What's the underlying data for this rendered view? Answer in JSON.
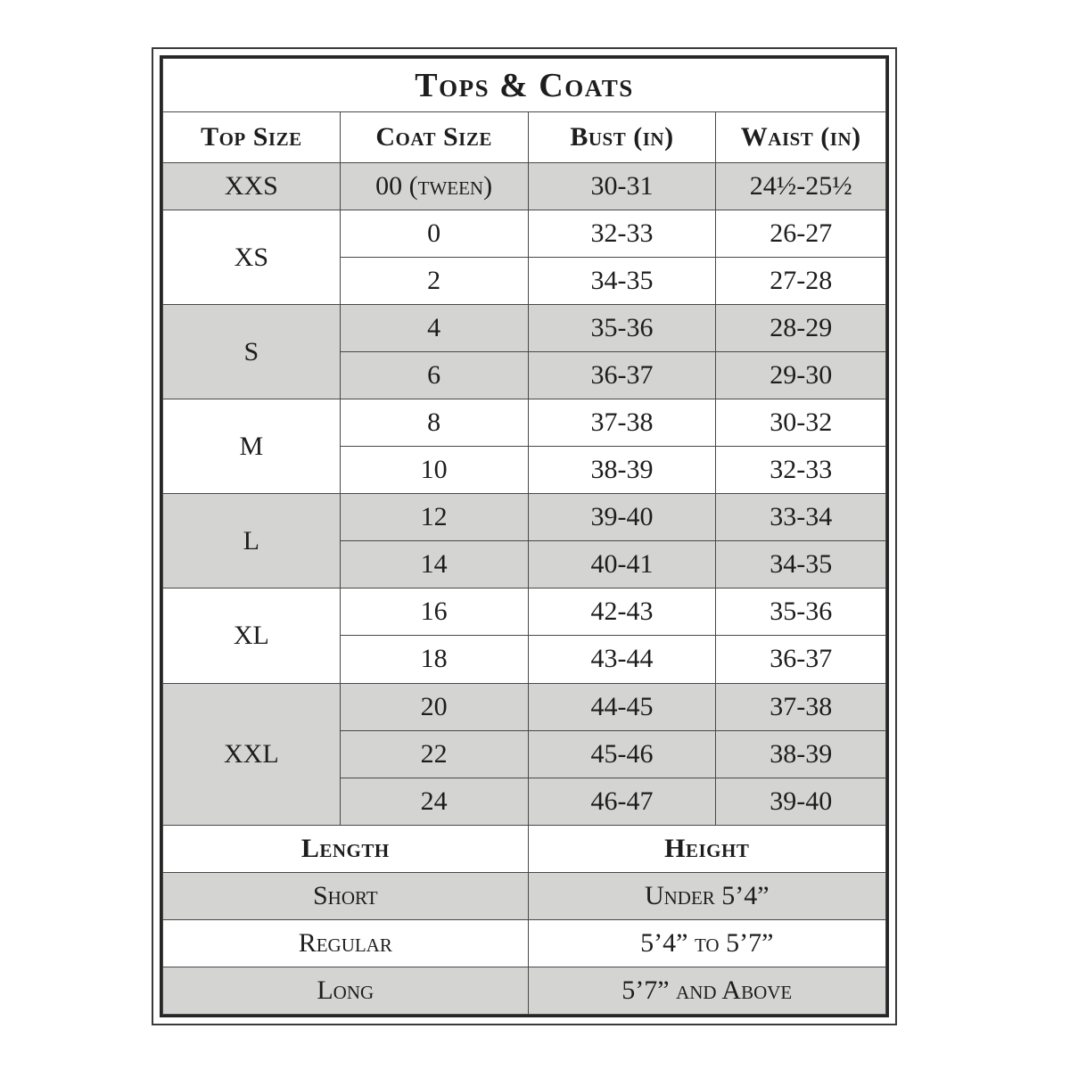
{
  "title": "Tops & Coats",
  "colors": {
    "shaded_row": "#d4d4d2",
    "text": "#1d1d1d",
    "grid_line": "#484848",
    "frame": "#262626",
    "background": "#ffffff"
  },
  "size_table": {
    "headers": [
      "Top Size",
      "Coat Size",
      "Bust (in)",
      "Waist (in)"
    ],
    "groups": [
      {
        "top_size": "XXS",
        "shaded": true,
        "rows": [
          {
            "coat_size": "00 (tween)",
            "bust": "30-31",
            "waist": "24½-25½"
          }
        ]
      },
      {
        "top_size": "XS",
        "shaded": false,
        "rows": [
          {
            "coat_size": "0",
            "bust": "32-33",
            "waist": "26-27"
          },
          {
            "coat_size": "2",
            "bust": "34-35",
            "waist": "27-28"
          }
        ]
      },
      {
        "top_size": "S",
        "shaded": true,
        "rows": [
          {
            "coat_size": "4",
            "bust": "35-36",
            "waist": "28-29"
          },
          {
            "coat_size": "6",
            "bust": "36-37",
            "waist": "29-30"
          }
        ]
      },
      {
        "top_size": "M",
        "shaded": false,
        "rows": [
          {
            "coat_size": "8",
            "bust": "37-38",
            "waist": "30-32"
          },
          {
            "coat_size": "10",
            "bust": "38-39",
            "waist": "32-33"
          }
        ]
      },
      {
        "top_size": "L",
        "shaded": true,
        "rows": [
          {
            "coat_size": "12",
            "bust": "39-40",
            "waist": "33-34"
          },
          {
            "coat_size": "14",
            "bust": "40-41",
            "waist": "34-35"
          }
        ]
      },
      {
        "top_size": "XL",
        "shaded": false,
        "rows": [
          {
            "coat_size": "16",
            "bust": "42-43",
            "waist": "35-36"
          },
          {
            "coat_size": "18",
            "bust": "43-44",
            "waist": "36-37"
          }
        ]
      },
      {
        "top_size": "XXL",
        "shaded": true,
        "rows": [
          {
            "coat_size": "20",
            "bust": "44-45",
            "waist": "37-38"
          },
          {
            "coat_size": "22",
            "bust": "45-46",
            "waist": "38-39"
          },
          {
            "coat_size": "24",
            "bust": "46-47",
            "waist": "39-40"
          }
        ]
      }
    ]
  },
  "length_table": {
    "headers": [
      "Length",
      "Height"
    ],
    "rows": [
      {
        "length": "Short",
        "height": "Under 5’4”",
        "shaded": true
      },
      {
        "length": "Regular",
        "height": "5’4” to 5’7”",
        "shaded": false
      },
      {
        "length": "Long",
        "height": "5’7” and Above",
        "shaded": true
      }
    ]
  }
}
